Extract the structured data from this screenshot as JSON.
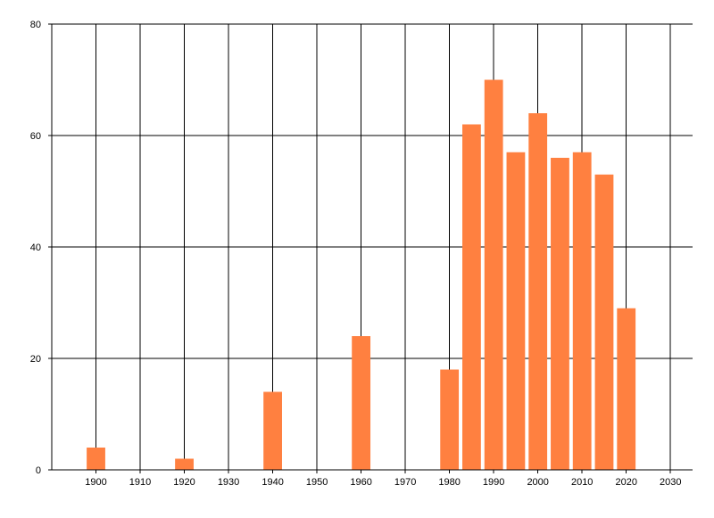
{
  "chart_data": {
    "type": "bar",
    "title": "",
    "xlabel": "",
    "ylabel": "",
    "x": [
      1900,
      1920,
      1940,
      1960,
      1980,
      1985,
      1990,
      1995,
      2000,
      2005,
      2010,
      2015,
      2020
    ],
    "values": [
      4,
      2,
      14,
      24,
      18,
      62,
      70,
      57,
      64,
      56,
      57,
      53,
      29
    ],
    "xlim": [
      1890,
      2035
    ],
    "ylim": [
      0,
      80
    ],
    "x_ticks": [
      "1900",
      "1910",
      "1920",
      "1930",
      "1940",
      "1950",
      "1960",
      "1970",
      "1980",
      "1990",
      "2000",
      "2010",
      "2020",
      "2030"
    ],
    "y_ticks": [
      "0",
      "20",
      "40",
      "60",
      "80"
    ],
    "grid": true,
    "legend": "none",
    "bar_color": "#ff8040"
  }
}
